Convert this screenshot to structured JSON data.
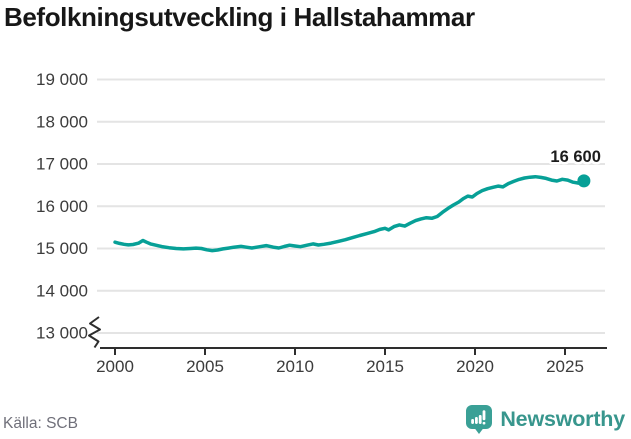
{
  "title": "Befolkningsutveckling i Hallstahammar",
  "source": "Källa: SCB",
  "branding": {
    "name": "Newsworthy"
  },
  "colors": {
    "line": "#07a097",
    "logo_teal": "#3aa096",
    "wordmark_teal": "#38968d",
    "grid": "#e4e4e4",
    "axis": "#2e2e2e",
    "tick_text": "#3c3c3c",
    "title_text": "#171717",
    "source_text": "#70707a"
  },
  "chart_data": {
    "type": "line",
    "title": "Befolkningsutveckling i Hallstahammar",
    "xlabel": "",
    "ylabel": "",
    "grid": "horizontal",
    "legend": "none",
    "y_axis_break": true,
    "ylim": [
      13000,
      19000
    ],
    "xlim": [
      2000,
      2026.3
    ],
    "x_ticks": [
      2000,
      2005,
      2010,
      2015,
      2020,
      2025
    ],
    "x_tick_labels": [
      "2000",
      "2005",
      "2010",
      "2015",
      "2020",
      "2025"
    ],
    "y_ticks": [
      13000,
      14000,
      15000,
      16000,
      17000,
      18000,
      19000
    ],
    "y_tick_labels": [
      "13 000",
      "14 000",
      "15 000",
      "16 000",
      "17 000",
      "18 000",
      "19 000"
    ],
    "line_color": "#07a097",
    "last_value_label": "16 600",
    "last_value": 16600,
    "series": [
      {
        "points": [
          [
            2000.0,
            15150
          ],
          [
            2000.25,
            15120
          ],
          [
            2000.5,
            15100
          ],
          [
            2000.75,
            15085
          ],
          [
            2001.0,
            15095
          ],
          [
            2001.3,
            15125
          ],
          [
            2001.55,
            15190
          ],
          [
            2001.75,
            15150
          ],
          [
            2002.0,
            15105
          ],
          [
            2002.3,
            15075
          ],
          [
            2002.6,
            15045
          ],
          [
            2003.0,
            15020
          ],
          [
            2003.4,
            15000
          ],
          [
            2003.8,
            14990
          ],
          [
            2004.2,
            15000
          ],
          [
            2004.5,
            15010
          ],
          [
            2004.8,
            15000
          ],
          [
            2005.1,
            14970
          ],
          [
            2005.4,
            14950
          ],
          [
            2005.7,
            14965
          ],
          [
            2006.0,
            14990
          ],
          [
            2006.3,
            15010
          ],
          [
            2006.6,
            15030
          ],
          [
            2007.0,
            15050
          ],
          [
            2007.3,
            15030
          ],
          [
            2007.6,
            15012
          ],
          [
            2008.0,
            15040
          ],
          [
            2008.4,
            15068
          ],
          [
            2008.8,
            15030
          ],
          [
            2009.1,
            15012
          ],
          [
            2009.4,
            15048
          ],
          [
            2009.7,
            15078
          ],
          [
            2010.0,
            15058
          ],
          [
            2010.3,
            15042
          ],
          [
            2010.7,
            15080
          ],
          [
            2011.0,
            15108
          ],
          [
            2011.3,
            15082
          ],
          [
            2011.6,
            15100
          ],
          [
            2012.0,
            15128
          ],
          [
            2012.4,
            15168
          ],
          [
            2012.8,
            15208
          ],
          [
            2013.2,
            15258
          ],
          [
            2013.6,
            15308
          ],
          [
            2014.0,
            15352
          ],
          [
            2014.4,
            15400
          ],
          [
            2014.7,
            15450
          ],
          [
            2015.0,
            15478
          ],
          [
            2015.2,
            15440
          ],
          [
            2015.5,
            15518
          ],
          [
            2015.8,
            15558
          ],
          [
            2016.1,
            15530
          ],
          [
            2016.4,
            15600
          ],
          [
            2016.7,
            15660
          ],
          [
            2017.0,
            15700
          ],
          [
            2017.3,
            15728
          ],
          [
            2017.6,
            15715
          ],
          [
            2017.9,
            15758
          ],
          [
            2018.2,
            15858
          ],
          [
            2018.5,
            15948
          ],
          [
            2018.8,
            16030
          ],
          [
            2019.1,
            16100
          ],
          [
            2019.35,
            16180
          ],
          [
            2019.6,
            16240
          ],
          [
            2019.85,
            16218
          ],
          [
            2020.1,
            16300
          ],
          [
            2020.4,
            16370
          ],
          [
            2020.7,
            16415
          ],
          [
            2021.0,
            16448
          ],
          [
            2021.3,
            16478
          ],
          [
            2021.55,
            16458
          ],
          [
            2021.85,
            16535
          ],
          [
            2022.15,
            16588
          ],
          [
            2022.45,
            16635
          ],
          [
            2022.75,
            16668
          ],
          [
            2023.05,
            16688
          ],
          [
            2023.35,
            16700
          ],
          [
            2023.65,
            16682
          ],
          [
            2023.95,
            16658
          ],
          [
            2024.25,
            16620
          ],
          [
            2024.55,
            16598
          ],
          [
            2024.85,
            16638
          ],
          [
            2025.15,
            16618
          ],
          [
            2025.45,
            16570
          ],
          [
            2025.75,
            16548
          ],
          [
            2026.05,
            16600
          ]
        ]
      }
    ]
  }
}
